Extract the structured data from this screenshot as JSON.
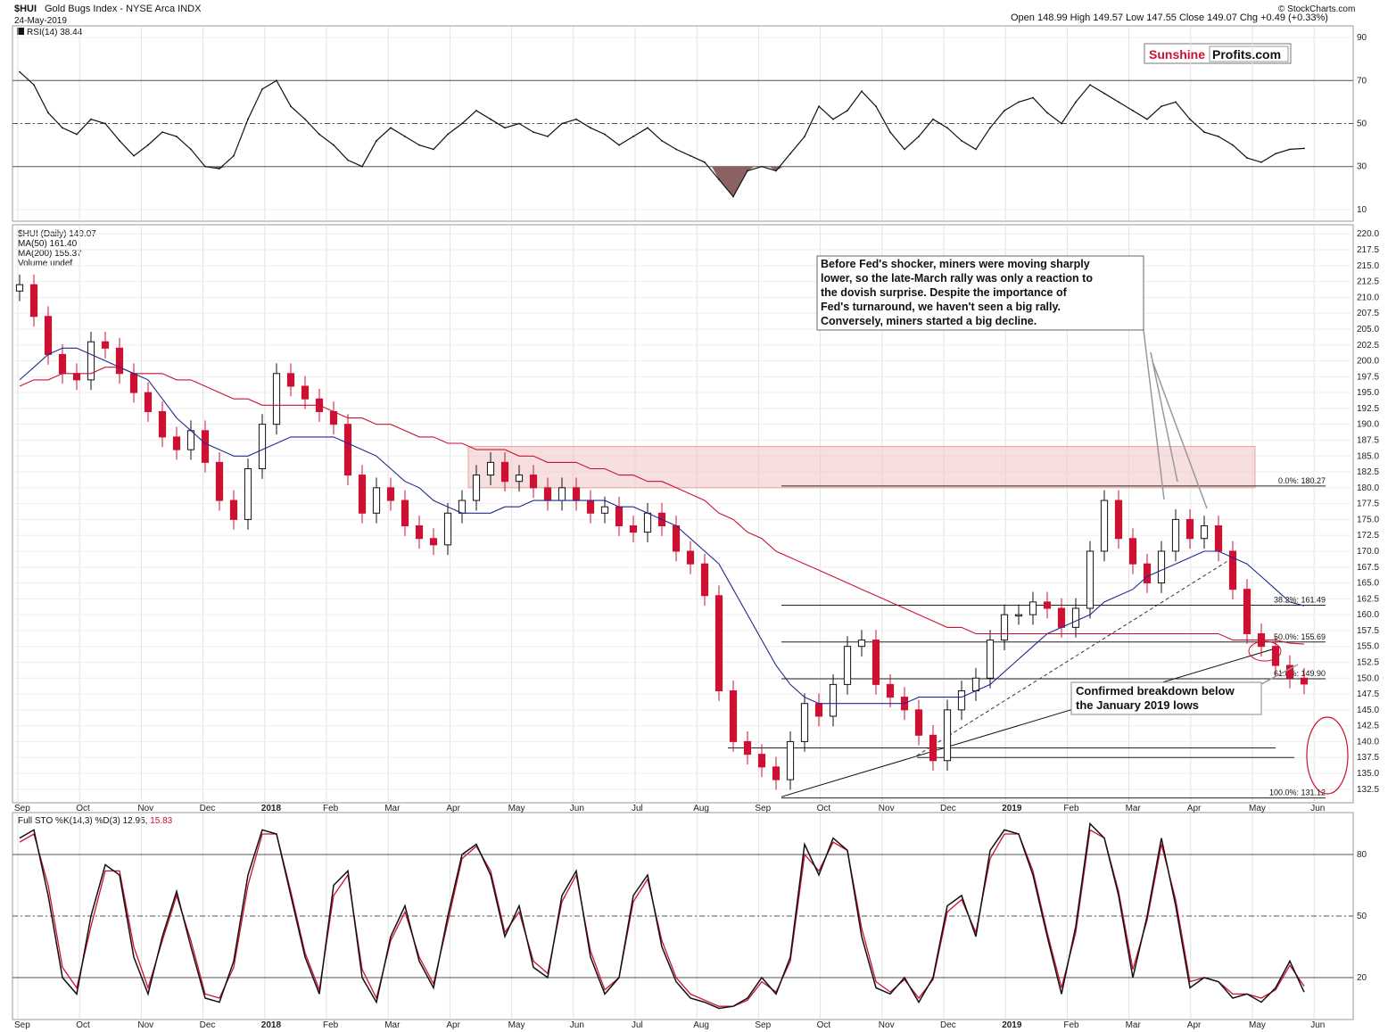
{
  "header": {
    "symbol": "$HUI",
    "name": "Gold Bugs Index - NYSE Arca INDX",
    "date": "24-May-2019",
    "ohlc": "Open 148.99  High 149.57  Low 147.55  Close 149.07  Chg +0.49 (+0.33%)",
    "copyright": "© StockCharts.com"
  },
  "logo": {
    "part1": "Sunshine",
    "part2": "Profits.com"
  },
  "colors": {
    "bull": "#111111",
    "bear": "#cc1133",
    "ma50": "#1f2a8a",
    "ma200": "#cc1133",
    "rsi_fill": "#8b6161",
    "zone": "#f3c4c4",
    "accent": "#cc1133"
  },
  "months": [
    "Sep",
    "Oct",
    "Nov",
    "Dec",
    "2018",
    "Feb",
    "Mar",
    "Apr",
    "May",
    "Jun",
    "Jul",
    "Aug",
    "Sep",
    "Oct",
    "Nov",
    "Dec",
    "2019",
    "Feb",
    "Mar",
    "Apr",
    "May",
    "Jun"
  ],
  "chart_data": [
    {
      "type": "line",
      "panel": "rsi",
      "legend": "RSI(14) 38.44",
      "y_ticks": [
        10,
        30,
        50,
        70,
        90
      ],
      "ylim": [
        5,
        95
      ],
      "levels": [
        30,
        50,
        70
      ],
      "x": [
        "2017-09-01",
        "2017-09-08",
        "2017-09-15",
        "2017-09-22",
        "2017-09-29",
        "2017-10-06",
        "2017-10-13",
        "2017-10-20",
        "2017-10-27",
        "2017-11-03",
        "2017-11-10",
        "2017-11-17",
        "2017-11-24",
        "2017-12-01",
        "2017-12-08",
        "2017-12-15",
        "2017-12-22",
        "2017-12-29",
        "2018-01-05",
        "2018-01-12",
        "2018-01-19",
        "2018-01-26",
        "2018-02-02",
        "2018-02-09",
        "2018-02-16",
        "2018-02-23",
        "2018-03-02",
        "2018-03-09",
        "2018-03-16",
        "2018-03-23",
        "2018-03-30",
        "2018-04-06",
        "2018-04-13",
        "2018-04-20",
        "2018-04-27",
        "2018-05-04",
        "2018-05-11",
        "2018-05-18",
        "2018-05-25",
        "2018-06-01",
        "2018-06-08",
        "2018-06-15",
        "2018-06-22",
        "2018-06-29",
        "2018-07-06",
        "2018-07-13",
        "2018-07-20",
        "2018-07-27",
        "2018-08-03",
        "2018-08-10",
        "2018-08-17",
        "2018-08-24",
        "2018-08-31",
        "2018-09-07",
        "2018-09-14",
        "2018-09-21",
        "2018-09-28",
        "2018-10-05",
        "2018-10-12",
        "2018-10-19",
        "2018-10-26",
        "2018-11-02",
        "2018-11-09",
        "2018-11-16",
        "2018-11-23",
        "2018-11-30",
        "2018-12-07",
        "2018-12-14",
        "2018-12-21",
        "2018-12-28",
        "2019-01-04",
        "2019-01-11",
        "2019-01-18",
        "2019-01-25",
        "2019-02-01",
        "2019-02-08",
        "2019-02-15",
        "2019-02-22",
        "2019-03-01",
        "2019-03-08",
        "2019-03-15",
        "2019-03-22",
        "2019-03-29",
        "2019-04-05",
        "2019-04-12",
        "2019-04-19",
        "2019-04-26",
        "2019-05-03",
        "2019-05-10",
        "2019-05-17",
        "2019-05-24"
      ],
      "values": [
        74,
        68,
        55,
        48,
        45,
        52,
        50,
        42,
        35,
        40,
        46,
        44,
        38,
        30,
        29,
        35,
        52,
        66,
        70,
        58,
        52,
        45,
        40,
        33,
        30,
        42,
        48,
        44,
        40,
        38,
        45,
        50,
        56,
        52,
        48,
        50,
        46,
        44,
        50,
        52,
        48,
        45,
        40,
        44,
        48,
        42,
        38,
        35,
        32,
        24,
        16,
        28,
        30,
        28,
        36,
        44,
        58,
        52,
        56,
        65,
        58,
        46,
        38,
        44,
        52,
        48,
        42,
        38,
        48,
        56,
        60,
        62,
        55,
        50,
        60,
        68,
        64,
        60,
        56,
        52,
        58,
        60,
        52,
        46,
        44,
        40,
        34,
        32,
        36,
        38,
        38.44
      ]
    },
    {
      "type": "candlestick",
      "panel": "price",
      "legend": [
        "$HUI (Daily) 149.07",
        "MA(50) 161.40",
        "MA(200) 155.37",
        "Volume undef"
      ],
      "y_ticks": [
        132.5,
        135.0,
        137.5,
        140.0,
        142.5,
        145.0,
        147.5,
        150.0,
        152.5,
        155.0,
        157.5,
        160.0,
        162.5,
        165.0,
        167.5,
        170.0,
        172.5,
        175.0,
        177.5,
        180.0,
        182.5,
        185.0,
        187.5,
        190.0,
        192.5,
        195.0,
        197.5,
        200.0,
        202.5,
        205.0,
        207.5,
        210.0,
        212.5,
        215.0,
        217.5,
        220.0
      ],
      "ylim": [
        130.5,
        221.3
      ],
      "x": [
        "2017-09-01",
        "2017-09-08",
        "2017-09-15",
        "2017-09-22",
        "2017-09-29",
        "2017-10-06",
        "2017-10-13",
        "2017-10-20",
        "2017-10-27",
        "2017-11-03",
        "2017-11-10",
        "2017-11-17",
        "2017-11-24",
        "2017-12-01",
        "2017-12-08",
        "2017-12-15",
        "2017-12-22",
        "2017-12-29",
        "2018-01-05",
        "2018-01-12",
        "2018-01-19",
        "2018-01-26",
        "2018-02-02",
        "2018-02-09",
        "2018-02-16",
        "2018-02-23",
        "2018-03-02",
        "2018-03-09",
        "2018-03-16",
        "2018-03-23",
        "2018-03-30",
        "2018-04-06",
        "2018-04-13",
        "2018-04-20",
        "2018-04-27",
        "2018-05-04",
        "2018-05-11",
        "2018-05-18",
        "2018-05-25",
        "2018-06-01",
        "2018-06-08",
        "2018-06-15",
        "2018-06-22",
        "2018-06-29",
        "2018-07-06",
        "2018-07-13",
        "2018-07-20",
        "2018-07-27",
        "2018-08-03",
        "2018-08-10",
        "2018-08-17",
        "2018-08-24",
        "2018-08-31",
        "2018-09-07",
        "2018-09-14",
        "2018-09-21",
        "2018-09-28",
        "2018-10-05",
        "2018-10-12",
        "2018-10-19",
        "2018-10-26",
        "2018-11-02",
        "2018-11-09",
        "2018-11-16",
        "2018-11-23",
        "2018-11-30",
        "2018-12-07",
        "2018-12-14",
        "2018-12-21",
        "2018-12-28",
        "2019-01-04",
        "2019-01-11",
        "2019-01-18",
        "2019-01-25",
        "2019-02-01",
        "2019-02-08",
        "2019-02-15",
        "2019-02-22",
        "2019-03-01",
        "2019-03-08",
        "2019-03-15",
        "2019-03-22",
        "2019-03-29",
        "2019-04-05",
        "2019-04-12",
        "2019-04-19",
        "2019-04-26",
        "2019-05-03",
        "2019-05-10",
        "2019-05-17",
        "2019-05-24"
      ],
      "close": [
        212,
        207,
        201,
        198,
        197,
        203,
        202,
        198,
        195,
        192,
        188,
        186,
        189,
        184,
        178,
        175,
        183,
        190,
        198,
        196,
        194,
        192,
        190,
        182,
        176,
        180,
        178,
        174,
        172,
        171,
        176,
        178,
        182,
        184,
        181,
        182,
        180,
        178,
        180,
        178,
        176,
        177,
        174,
        173,
        176,
        174,
        170,
        168,
        163,
        148,
        140,
        138,
        136,
        134,
        140,
        146,
        144,
        149,
        155,
        156,
        149,
        147,
        145,
        141,
        137,
        145,
        148,
        150,
        156,
        160,
        160,
        162,
        161,
        158,
        161,
        170,
        178,
        172,
        168,
        165,
        170,
        175,
        172,
        174,
        170,
        164,
        157,
        155,
        152,
        150,
        149.07
      ],
      "ma50": [
        197,
        199,
        201,
        202,
        202,
        201,
        200,
        199,
        198,
        197,
        194,
        191,
        189,
        187,
        186,
        185,
        185,
        186,
        187,
        188,
        188,
        188,
        188,
        187,
        186,
        185,
        183,
        181,
        180,
        178,
        177,
        176,
        176,
        176,
        177,
        177,
        178,
        178,
        178,
        178,
        178,
        178,
        177,
        177,
        176,
        175,
        174,
        172,
        170,
        168,
        164,
        160,
        156,
        152,
        149,
        147,
        146,
        146,
        146,
        146,
        146,
        146,
        146,
        147,
        147,
        147,
        147,
        148,
        149,
        151,
        153,
        155,
        157,
        158,
        159,
        160,
        162,
        163,
        164,
        166,
        167,
        168,
        169,
        170,
        170,
        169,
        168,
        166,
        164,
        162,
        161.4
      ],
      "ma200": [
        196,
        197,
        197,
        198,
        198,
        198,
        199,
        199,
        198,
        198,
        198,
        197,
        197,
        196,
        195,
        194,
        194,
        193,
        193,
        193,
        193,
        193,
        192,
        191,
        191,
        190,
        190,
        189,
        188,
        188,
        187,
        187,
        186,
        186,
        186,
        185,
        185,
        184,
        184,
        184,
        183,
        183,
        182,
        182,
        181,
        181,
        180,
        179,
        178,
        176,
        175,
        173,
        172,
        170,
        169,
        168,
        167,
        166,
        165,
        164,
        163,
        162,
        161,
        160,
        159,
        158,
        158,
        157,
        157,
        157,
        157,
        157,
        157,
        157,
        157,
        157,
        157,
        157,
        157,
        157,
        157,
        157,
        157,
        157,
        157,
        156,
        156,
        156,
        156,
        155.5,
        155.37
      ],
      "resistance_zone": [
        180,
        186.5
      ],
      "fibonacci": [
        {
          "label": "0.0%: 180.27",
          "value": 180.27
        },
        {
          "label": "38.2%: 161.49",
          "value": 161.49
        },
        {
          "label": "50.0%: 155.69",
          "value": 155.69
        },
        {
          "label": "61.8%: 149.90",
          "value": 149.9
        },
        {
          "label": "100.0%: 131.12",
          "value": 131.12
        }
      ],
      "horizontal_levels": [
        139,
        137.5
      ],
      "annotations": [
        {
          "text": [
            "Before Fed's shocker, miners were moving sharply",
            "lower, so the late-March rally was only a reaction to",
            "the dovish surprise. Despite the importance of",
            "Fed's turnaround, we haven't seen a big rally.",
            "Conversely, miners started a big decline."
          ]
        },
        {
          "text": [
            "Confirmed breakdown below",
            "the January 2019 lows"
          ]
        }
      ]
    },
    {
      "type": "line",
      "panel": "stochastic",
      "legend_prefix": "Full STO %K(14,3) %D(3) 12.95,",
      "legend_d": "15.83",
      "y_ticks": [
        20,
        50,
        80
      ],
      "ylim": [
        0,
        100
      ],
      "levels": [
        20,
        50,
        80
      ],
      "x": [
        "2017-09-01",
        "2017-09-08",
        "2017-09-15",
        "2017-09-22",
        "2017-09-29",
        "2017-10-06",
        "2017-10-13",
        "2017-10-20",
        "2017-10-27",
        "2017-11-03",
        "2017-11-10",
        "2017-11-17",
        "2017-11-24",
        "2017-12-01",
        "2017-12-08",
        "2017-12-15",
        "2017-12-22",
        "2017-12-29",
        "2018-01-05",
        "2018-01-12",
        "2018-01-19",
        "2018-01-26",
        "2018-02-02",
        "2018-02-09",
        "2018-02-16",
        "2018-02-23",
        "2018-03-02",
        "2018-03-09",
        "2018-03-16",
        "2018-03-23",
        "2018-03-30",
        "2018-04-06",
        "2018-04-13",
        "2018-04-20",
        "2018-04-27",
        "2018-05-04",
        "2018-05-11",
        "2018-05-18",
        "2018-05-25",
        "2018-06-01",
        "2018-06-08",
        "2018-06-15",
        "2018-06-22",
        "2018-06-29",
        "2018-07-06",
        "2018-07-13",
        "2018-07-20",
        "2018-07-27",
        "2018-08-03",
        "2018-08-10",
        "2018-08-17",
        "2018-08-24",
        "2018-08-31",
        "2018-09-07",
        "2018-09-14",
        "2018-09-21",
        "2018-09-28",
        "2018-10-05",
        "2018-10-12",
        "2018-10-19",
        "2018-10-26",
        "2018-11-02",
        "2018-11-09",
        "2018-11-16",
        "2018-11-23",
        "2018-11-30",
        "2018-12-07",
        "2018-12-14",
        "2018-12-21",
        "2018-12-28",
        "2019-01-04",
        "2019-01-11",
        "2019-01-18",
        "2019-01-25",
        "2019-02-01",
        "2019-02-08",
        "2019-02-15",
        "2019-02-22",
        "2019-03-01",
        "2019-03-08",
        "2019-03-15",
        "2019-03-22",
        "2019-03-29",
        "2019-04-05",
        "2019-04-12",
        "2019-04-19",
        "2019-04-26",
        "2019-05-03",
        "2019-05-10",
        "2019-05-17",
        "2019-05-24"
      ],
      "k": [
        88,
        92,
        60,
        20,
        12,
        50,
        75,
        70,
        30,
        12,
        40,
        62,
        35,
        10,
        8,
        28,
        70,
        92,
        90,
        60,
        30,
        12,
        65,
        72,
        20,
        8,
        40,
        55,
        28,
        15,
        50,
        80,
        85,
        70,
        40,
        55,
        25,
        20,
        60,
        72,
        30,
        12,
        20,
        60,
        70,
        35,
        18,
        10,
        8,
        5,
        6,
        10,
        20,
        12,
        30,
        85,
        70,
        88,
        82,
        40,
        15,
        12,
        20,
        8,
        20,
        55,
        60,
        40,
        82,
        92,
        90,
        70,
        40,
        12,
        45,
        95,
        88,
        60,
        20,
        50,
        88,
        55,
        15,
        20,
        18,
        10,
        12,
        8,
        15,
        28,
        12.95
      ],
      "d": [
        86,
        90,
        65,
        25,
        15,
        45,
        72,
        72,
        35,
        15,
        38,
        60,
        38,
        12,
        10,
        25,
        65,
        90,
        90,
        62,
        32,
        14,
        60,
        70,
        24,
        10,
        38,
        52,
        30,
        17,
        47,
        78,
        84,
        72,
        42,
        52,
        28,
        22,
        57,
        70,
        33,
        14,
        20,
        57,
        68,
        38,
        20,
        12,
        9,
        6,
        6,
        9,
        18,
        13,
        28,
        80,
        72,
        86,
        82,
        44,
        18,
        13,
        19,
        10,
        19,
        52,
        58,
        42,
        78,
        90,
        90,
        72,
        42,
        15,
        42,
        92,
        88,
        62,
        24,
        48,
        85,
        58,
        18,
        20,
        18,
        12,
        12,
        10,
        14,
        26,
        15.83
      ]
    }
  ]
}
